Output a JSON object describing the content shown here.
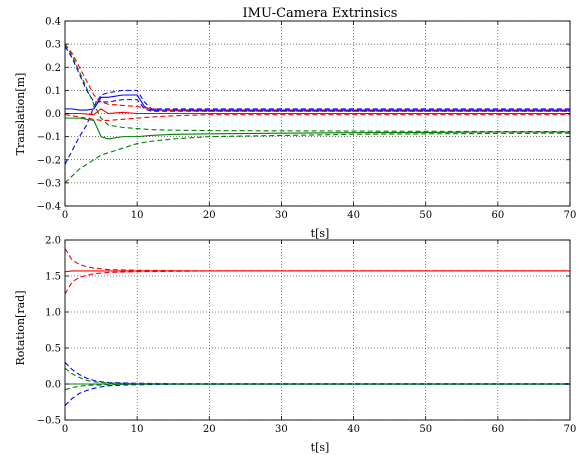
{
  "chart_data": [
    {
      "type": "line",
      "title": "IMU-Camera Extrinsics",
      "xlabel": "t[s]",
      "ylabel": "Translation[m]",
      "xlim": [
        0,
        70
      ],
      "ylim": [
        -0.4,
        0.4
      ],
      "xticks": [
        "0",
        "10",
        "20",
        "30",
        "40",
        "50",
        "60",
        "70"
      ],
      "yticks": [
        "−0.4",
        "−0.3",
        "−0.2",
        "−0.1",
        "0.0",
        "0.1",
        "0.2",
        "0.3",
        "0.4"
      ],
      "grid": true,
      "series": [
        {
          "color": "#0000ff",
          "style": "solid",
          "x": [
            0,
            1,
            2,
            3,
            4,
            5,
            6,
            8,
            10,
            11,
            12,
            15,
            20,
            30,
            40,
            50,
            60,
            70
          ],
          "y": [
            0.02,
            0.02,
            0.015,
            0.015,
            0.02,
            0.07,
            0.07,
            0.08,
            0.08,
            0.03,
            0.015,
            0.015,
            0.015,
            0.015,
            0.015,
            0.015,
            0.015,
            0.015
          ]
        },
        {
          "color": "#0000ff",
          "style": "dashed",
          "x": [
            0,
            1,
            2,
            3,
            4,
            5,
            6,
            8,
            10,
            11,
            12,
            15,
            20,
            30,
            40,
            50,
            60,
            70
          ],
          "y": [
            -0.22,
            -0.16,
            -0.1,
            -0.05,
            0.03,
            0.08,
            0.09,
            0.1,
            0.1,
            0.05,
            0.02,
            0.02,
            0.02,
            0.02,
            0.02,
            0.02,
            0.02,
            0.02
          ]
        },
        {
          "color": "#0000ff",
          "style": "dashed",
          "x": [
            0,
            1,
            2,
            3,
            4,
            5,
            6,
            8,
            10,
            11,
            12,
            15,
            20,
            30,
            40,
            50,
            60,
            70
          ],
          "y": [
            0.29,
            0.24,
            0.17,
            0.1,
            0.05,
            0.05,
            0.05,
            0.06,
            0.06,
            0.02,
            0.01,
            0.01,
            0.01,
            0.01,
            0.01,
            0.01,
            0.01,
            0.01
          ]
        },
        {
          "color": "#ff0000",
          "style": "solid",
          "x": [
            0,
            2,
            4,
            5,
            6,
            8,
            10,
            12,
            15,
            20,
            30,
            40,
            50,
            60,
            70
          ],
          "y": [
            0.0,
            0.0,
            -0.005,
            0.02,
            0.0,
            0.005,
            0.0,
            0.0,
            0.0,
            0.0,
            0.0,
            0.0,
            0.0,
            0.0,
            0.0
          ]
        },
        {
          "color": "#ff0000",
          "style": "dashed",
          "x": [
            0,
            1,
            2,
            3,
            4,
            5,
            6,
            8,
            10,
            12,
            15,
            20,
            30,
            40,
            50,
            60,
            70
          ],
          "y": [
            0.3,
            0.26,
            0.2,
            0.14,
            0.08,
            0.05,
            0.04,
            0.035,
            0.03,
            0.02,
            0.012,
            0.01,
            0.01,
            0.01,
            0.01,
            0.01,
            0.01
          ]
        },
        {
          "color": "#ff0000",
          "style": "dashed",
          "x": [
            0,
            1,
            2,
            3,
            4,
            5,
            6,
            8,
            10,
            12,
            15,
            20,
            30,
            40,
            50,
            60,
            70
          ],
          "y": [
            -0.005,
            -0.01,
            -0.015,
            -0.02,
            -0.025,
            -0.03,
            -0.03,
            -0.025,
            -0.02,
            -0.015,
            -0.01,
            -0.005,
            -0.005,
            -0.005,
            -0.005,
            -0.005,
            -0.005
          ]
        },
        {
          "color": "#008000",
          "style": "solid",
          "x": [
            0,
            2,
            3,
            4,
            5,
            6,
            8,
            10,
            12,
            15,
            20,
            30,
            40,
            50,
            60,
            70
          ],
          "y": [
            -0.02,
            -0.02,
            -0.025,
            -0.03,
            -0.1,
            -0.11,
            -0.1,
            -0.1,
            -0.095,
            -0.09,
            -0.088,
            -0.085,
            -0.083,
            -0.082,
            -0.08,
            -0.08
          ]
        },
        {
          "color": "#008000",
          "style": "dashed",
          "x": [
            0,
            1,
            2,
            3,
            4,
            5,
            6,
            8,
            10,
            12,
            15,
            20,
            30,
            40,
            50,
            60,
            70
          ],
          "y": [
            0.3,
            0.25,
            0.18,
            0.11,
            0.04,
            -0.02,
            -0.05,
            -0.06,
            -0.065,
            -0.07,
            -0.072,
            -0.074,
            -0.075,
            -0.076,
            -0.077,
            -0.078,
            -0.078
          ]
        },
        {
          "color": "#008000",
          "style": "dashed",
          "x": [
            0,
            1,
            2,
            3,
            4,
            5,
            6,
            8,
            10,
            12,
            15,
            20,
            30,
            40,
            50,
            60,
            70
          ],
          "y": [
            -0.3,
            -0.27,
            -0.24,
            -0.22,
            -0.2,
            -0.18,
            -0.17,
            -0.15,
            -0.13,
            -0.12,
            -0.11,
            -0.1,
            -0.095,
            -0.09,
            -0.088,
            -0.086,
            -0.085
          ]
        }
      ]
    },
    {
      "type": "line",
      "title": "",
      "xlabel": "t[s]",
      "ylabel": "Rotation[rad]",
      "xlim": [
        0,
        70
      ],
      "ylim": [
        -0.5,
        2.0
      ],
      "xticks": [
        "0",
        "10",
        "20",
        "30",
        "40",
        "50",
        "60",
        "70"
      ],
      "yticks": [
        "−0.5",
        "0.0",
        "0.5",
        "1.0",
        "1.5",
        "2.0"
      ],
      "grid": true,
      "series": [
        {
          "color": "#ff0000",
          "style": "solid",
          "x": [
            0,
            1,
            2,
            4,
            6,
            10,
            20,
            70
          ],
          "y": [
            1.56,
            1.57,
            1.57,
            1.57,
            1.57,
            1.57,
            1.57,
            1.57
          ]
        },
        {
          "color": "#ff0000",
          "style": "dashed",
          "x": [
            0,
            1,
            2,
            3,
            4,
            6,
            8,
            10,
            15,
            20,
            70
          ],
          "y": [
            1.88,
            1.72,
            1.66,
            1.63,
            1.61,
            1.59,
            1.585,
            1.58,
            1.575,
            1.57,
            1.57
          ]
        },
        {
          "color": "#ff0000",
          "style": "dashed",
          "x": [
            0,
            1,
            2,
            3,
            4,
            6,
            8,
            10,
            15,
            20,
            70
          ],
          "y": [
            1.25,
            1.42,
            1.48,
            1.51,
            1.53,
            1.55,
            1.555,
            1.56,
            1.565,
            1.57,
            1.57
          ]
        },
        {
          "color": "#0000ff",
          "style": "solid",
          "x": [
            0,
            2,
            4,
            6,
            10,
            70
          ],
          "y": [
            0.0,
            0.0,
            0.0,
            0.0,
            0.0,
            0.0
          ]
        },
        {
          "color": "#0000ff",
          "style": "dashed",
          "x": [
            0,
            1,
            2,
            3,
            4,
            5,
            6,
            8,
            10,
            15,
            70
          ],
          "y": [
            0.3,
            0.2,
            0.13,
            0.08,
            0.05,
            0.03,
            0.02,
            0.015,
            0.01,
            0.005,
            0.005
          ]
        },
        {
          "color": "#0000ff",
          "style": "dashed",
          "x": [
            0,
            1,
            2,
            3,
            4,
            5,
            6,
            8,
            10,
            15,
            70
          ],
          "y": [
            -0.3,
            -0.2,
            -0.13,
            -0.09,
            -0.06,
            -0.04,
            -0.025,
            -0.015,
            -0.01,
            -0.005,
            -0.005
          ]
        },
        {
          "color": "#008000",
          "style": "solid",
          "x": [
            0,
            2,
            4,
            6,
            10,
            70
          ],
          "y": [
            0.0,
            0.0,
            0.0,
            0.0,
            0.0,
            0.0
          ]
        },
        {
          "color": "#008000",
          "style": "dashed",
          "x": [
            0,
            1,
            2,
            3,
            4,
            6,
            8,
            10,
            15,
            70
          ],
          "y": [
            0.22,
            0.14,
            0.09,
            0.05,
            0.03,
            0.015,
            0.01,
            0.005,
            0.003,
            0.003
          ]
        },
        {
          "color": "#008000",
          "style": "dashed",
          "x": [
            0,
            1,
            2,
            3,
            4,
            6,
            8,
            10,
            15,
            70
          ],
          "y": [
            -0.08,
            -0.05,
            -0.03,
            -0.02,
            -0.015,
            -0.01,
            -0.005,
            -0.003,
            -0.002,
            -0.002
          ]
        }
      ]
    }
  ]
}
